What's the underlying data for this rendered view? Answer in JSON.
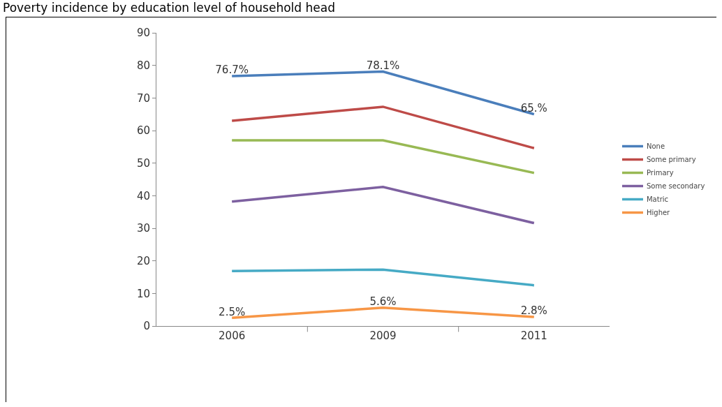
{
  "chart_data": {
    "type": "line",
    "title": "Poverty incidence by education level of household head",
    "categories": [
      "2006",
      "2009",
      "2011"
    ],
    "series": [
      {
        "name": "None",
        "color": "#4a7ebb",
        "values": [
          76.7,
          78.1,
          65
        ],
        "value_labels": [
          "76.7%",
          "78.1%",
          "65.%"
        ]
      },
      {
        "name": "Some primary",
        "color": "#be4b48",
        "values": [
          63,
          67.3,
          54.6
        ]
      },
      {
        "name": "Primary",
        "color": "#98b954",
        "values": [
          57,
          57,
          47
        ]
      },
      {
        "name": "Some secondary",
        "color": "#7d60a0",
        "values": [
          38.2,
          42.7,
          31.6
        ]
      },
      {
        "name": "Matric",
        "color": "#46aac5",
        "values": [
          16.9,
          17.3,
          12.5
        ]
      },
      {
        "name": "Higher",
        "color": "#f79646",
        "values": [
          2.5,
          5.6,
          2.8
        ],
        "value_labels": [
          "2.5%",
          "5.6%",
          "2.8%"
        ]
      }
    ],
    "ylim": [
      0,
      90
    ],
    "yticks": [
      0,
      10,
      20,
      30,
      40,
      50,
      60,
      70,
      80,
      90
    ],
    "grid": false,
    "legend": "right",
    "marker": "none",
    "line_style": "solid"
  }
}
